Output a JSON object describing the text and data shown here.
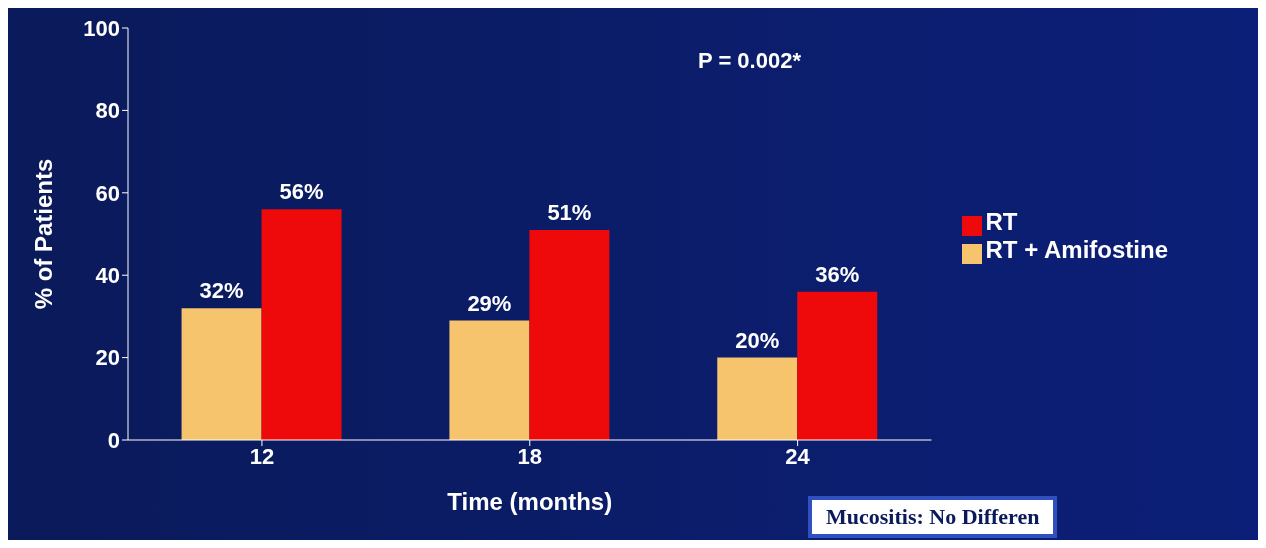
{
  "chart_data": {
    "type": "bar",
    "xlabel": "Time (months)",
    "ylabel": "% of Patients",
    "categories": [
      "12",
      "18",
      "24"
    ],
    "series": [
      {
        "name": "RT + Amifostine",
        "color": "#f5c46c",
        "values": [
          32,
          29,
          20
        ],
        "value_labels": [
          "32%",
          "29%",
          "20%"
        ]
      },
      {
        "name": "RT",
        "color": "#ee0a0a",
        "values": [
          56,
          51,
          36
        ],
        "value_labels": [
          "56%",
          "51%",
          "36%"
        ]
      }
    ],
    "ylim": [
      0,
      100
    ],
    "yticks": [
      0,
      20,
      40,
      60,
      80,
      100
    ],
    "grid": false,
    "legend": "right",
    "annotations": [
      "P = 0.002*",
      "Mucositis: No Differen"
    ]
  }
}
